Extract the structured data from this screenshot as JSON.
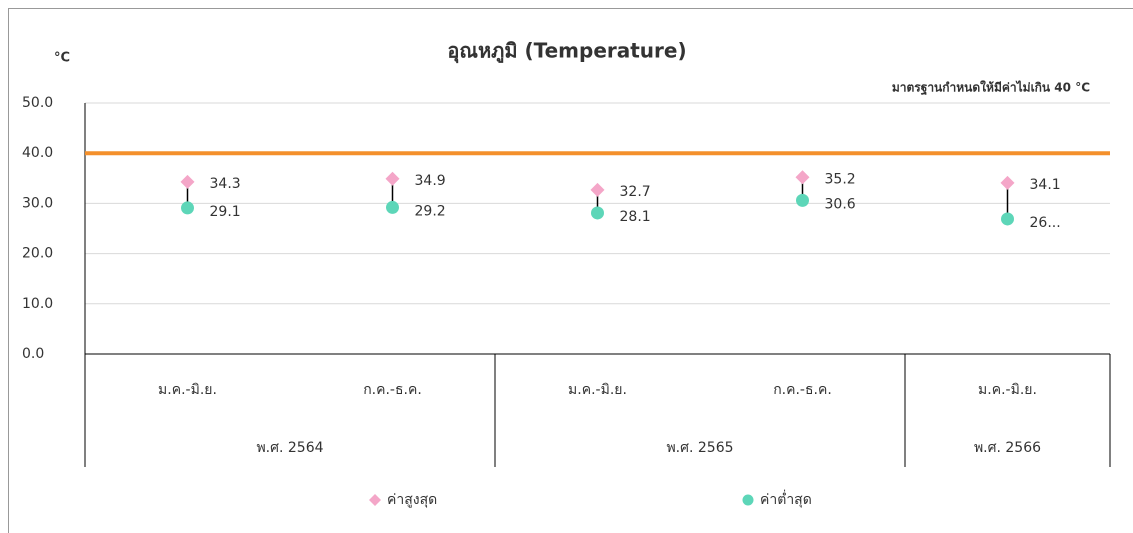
{
  "chart_data": {
    "type": "high-low",
    "title": "อุณหภูมิ (Temperature)",
    "y_unit": "°C",
    "annotation": "มาตรฐานกำหนดให้มีค่าไม่เกิน 40 °C",
    "reference_line": {
      "value": 40,
      "color": "#f4902b"
    },
    "categories": [
      "ม.ค.-มิ.ย.",
      "ก.ค.-ธ.ค.",
      "ม.ค.-มิ.ย.",
      "ก.ค.-ธ.ค.",
      "ม.ค.-มิ.ย."
    ],
    "groups": [
      {
        "label": "พ.ศ. 2564",
        "span": 2
      },
      {
        "label": "พ.ศ. 2565",
        "span": 2
      },
      {
        "label": "พ.ศ. 2566",
        "span": 1
      }
    ],
    "series": [
      {
        "name": "ค่าสูงสุด",
        "color": "#f4a6c8",
        "marker": "diamond",
        "values": [
          34.3,
          34.9,
          32.7,
          35.2,
          34.1
        ]
      },
      {
        "name": "ค่าต่ำสุด",
        "color": "#5dd6b8",
        "marker": "circle",
        "values": [
          29.1,
          29.2,
          28.1,
          30.6,
          26.9
        ],
        "value_labels": [
          "29.1",
          "29.2",
          "28.1",
          "30.6",
          "26..."
        ]
      }
    ],
    "ylim": [
      0,
      50
    ],
    "yticks": [
      {
        "value": 0,
        "label": "0.0"
      },
      {
        "value": 10,
        "label": "10.0"
      },
      {
        "value": 20,
        "label": "20.0"
      },
      {
        "value": 30,
        "label": "30.0"
      },
      {
        "value": 40,
        "label": "40.0"
      },
      {
        "value": 50,
        "label": "50.0"
      }
    ],
    "grid": true
  }
}
